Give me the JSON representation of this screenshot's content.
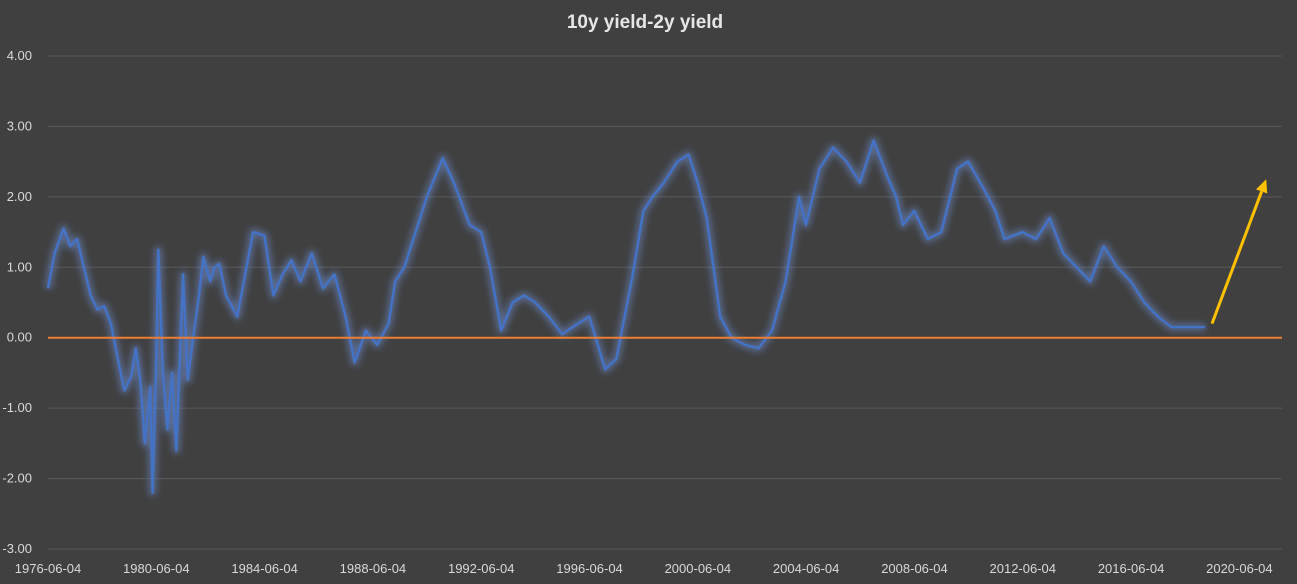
{
  "chart_data": {
    "type": "line",
    "title": "10y yield-2y yield",
    "xlabel": "",
    "ylabel": "",
    "x_ticks": [
      "1976-06-04",
      "1980-06-04",
      "1984-06-04",
      "1988-06-04",
      "1992-06-04",
      "1996-06-04",
      "2000-06-04",
      "2004-06-04",
      "2008-06-04",
      "2012-06-04",
      "2016-06-04",
      "2020-06-04"
    ],
    "y_ticks": [
      "4.00",
      "3.00",
      "2.00",
      "1.00",
      "0.00",
      "-1.00",
      "-2.00",
      "-3.00"
    ],
    "ylim": [
      -3,
      4
    ],
    "xlim": [
      "1976-06-04",
      "2021-12-31"
    ],
    "grid": true,
    "legend": "none",
    "colors": {
      "background": "#404040",
      "grid": "#595959",
      "series_line": "#4472c4",
      "series_glow": "#6f8fd8",
      "zero_line": "#ed7d31",
      "arrow": "#ffc000"
    },
    "series": [
      {
        "x": [
          "1976-06-04",
          "1976-09-01",
          "1977-01-01",
          "1977-04-01",
          "1977-07-01",
          "1977-10-01",
          "1978-01-01",
          "1978-04-01",
          "1978-07-01",
          "1978-10-01",
          "1979-01-01",
          "1979-04-01",
          "1979-07-01",
          "1979-09-01",
          "1979-11-01",
          "1980-01-01",
          "1980-03-15",
          "1980-04-15",
          "1980-06-04",
          "1980-07-01",
          "1980-09-01",
          "1980-11-01",
          "1981-01-01",
          "1981-03-01",
          "1981-06-01",
          "1981-08-01",
          "1981-10-01",
          "1982-01-01",
          "1982-03-01",
          "1982-06-01",
          "1982-08-01",
          "1982-10-01",
          "1983-01-01",
          "1983-06-01",
          "1984-01-01",
          "1984-06-01",
          "1984-10-01",
          "1985-02-01",
          "1985-06-01",
          "1985-10-01",
          "1986-03-01",
          "1986-08-01",
          "1987-01-01",
          "1987-06-01",
          "1987-10-01",
          "1988-03-01",
          "1988-08-01",
          "1989-01-01",
          "1989-04-01",
          "1989-08-01",
          "1990-01-01",
          "1990-06-01",
          "1991-01-01",
          "1991-06-01",
          "1992-01-01",
          "1992-06-04",
          "1992-10-01",
          "1993-03-01",
          "1993-08-01",
          "1994-01-01",
          "1994-06-01",
          "1994-12-01",
          "1995-06-01",
          "1996-01-01",
          "1996-06-01",
          "1997-01-01",
          "1997-06-01",
          "1998-01-01",
          "1998-06-01",
          "1998-10-01",
          "1999-03-01",
          "1999-09-01",
          "2000-02-01",
          "2000-06-01",
          "2000-10-01",
          "2001-01-01",
          "2001-04-01",
          "2001-09-01",
          "2002-03-01",
          "2002-09-01",
          "2003-03-01",
          "2003-09-01",
          "2004-03-01",
          "2004-06-01",
          "2004-12-01",
          "2005-06-01",
          "2005-12-01",
          "2006-06-01",
          "2006-12-01",
          "2007-06-01",
          "2007-10-01",
          "2008-01-01",
          "2008-06-01",
          "2008-12-01",
          "2009-06-01",
          "2010-01-01",
          "2010-06-01",
          "2011-01-01",
          "2011-06-01",
          "2011-10-01",
          "2012-06-01",
          "2012-12-01",
          "2013-06-01",
          "2013-12-01",
          "2014-06-01",
          "2014-12-01",
          "2015-06-01",
          "2015-12-01",
          "2016-06-01",
          "2016-12-01",
          "2017-06-01",
          "2017-12-01",
          "2018-06-01",
          "2018-12-01",
          "2019-03-01"
        ],
        "y": [
          0.7,
          1.2,
          1.55,
          1.3,
          1.4,
          1.0,
          0.6,
          0.4,
          0.45,
          0.2,
          -0.3,
          -0.75,
          -0.55,
          -0.15,
          -0.6,
          -1.5,
          -0.7,
          -2.2,
          -0.3,
          1.25,
          -0.5,
          -1.3,
          -0.5,
          -1.6,
          0.9,
          -0.6,
          -0.1,
          0.6,
          1.15,
          0.8,
          1.0,
          1.05,
          0.6,
          0.3,
          1.5,
          1.45,
          0.6,
          0.9,
          1.1,
          0.8,
          1.2,
          0.7,
          0.9,
          0.3,
          -0.35,
          0.1,
          -0.1,
          0.2,
          0.8,
          1.0,
          1.5,
          2.0,
          2.55,
          2.2,
          1.6,
          1.5,
          1.0,
          0.1,
          0.5,
          0.6,
          0.5,
          0.3,
          0.05,
          0.2,
          0.3,
          -0.45,
          -0.3,
          0.85,
          1.8,
          2.0,
          2.2,
          2.5,
          2.6,
          2.2,
          1.7,
          1.0,
          0.3,
          0.0,
          -0.1,
          -0.15,
          0.1,
          0.8,
          2.0,
          1.6,
          2.4,
          2.7,
          2.5,
          2.2,
          2.8,
          2.3,
          2.0,
          1.6,
          1.8,
          1.4,
          1.5,
          2.4,
          2.5,
          2.1,
          1.8,
          1.4,
          1.5,
          1.4,
          1.7,
          1.2,
          1.0,
          0.8,
          1.3,
          1.0,
          0.8,
          0.5,
          0.3,
          0.15,
          0.15,
          0.15,
          0.15
        ],
        "note_series": "smoothed reading of the blue line from the gridlines"
      }
    ],
    "reference_lines": [
      {
        "y": 0.0
      }
    ],
    "annotations": [
      {
        "type": "arrow",
        "from": {
          "x": "2019-06-01",
          "y": 0.2
        },
        "to": {
          "x": "2021-06-01",
          "y": 2.25
        }
      }
    ]
  }
}
